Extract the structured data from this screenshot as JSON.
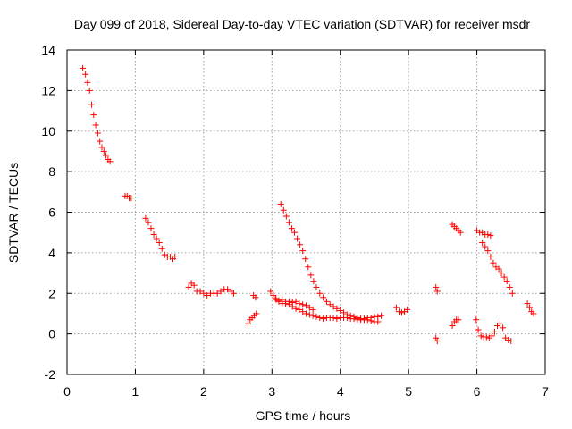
{
  "chart_data": {
    "type": "scatter",
    "title": "Day 099 of 2018, Sidereal Day-to-day VTEC variation (SDTVAR) for receiver msdr",
    "xlabel": "GPS time / hours",
    "ylabel": "SDTVAR / TECUs",
    "xlim": [
      0,
      7
    ],
    "ylim": [
      -2,
      14
    ],
    "xticks": [
      0,
      1,
      2,
      3,
      4,
      5,
      6,
      7
    ],
    "yticks": [
      -2,
      0,
      2,
      4,
      6,
      8,
      10,
      12,
      14
    ],
    "xtick_labels": [
      "0",
      "1",
      "2",
      "3",
      "4",
      "5",
      "6",
      "7"
    ],
    "ytick_labels": [
      "-2",
      "0",
      "2",
      "4",
      "6",
      "8",
      "10",
      "12",
      "14"
    ],
    "grid": true,
    "marker": "+",
    "marker_color": "#ff0000",
    "segments": [
      {
        "name": "seg1",
        "x": [
          0.23,
          0.27,
          0.3,
          0.33,
          0.36,
          0.39,
          0.42,
          0.45,
          0.48,
          0.51,
          0.54,
          0.57,
          0.6,
          0.63
        ],
        "y": [
          13.1,
          12.8,
          12.4,
          12.0,
          11.3,
          10.8,
          10.3,
          9.9,
          9.5,
          9.2,
          9.0,
          8.8,
          8.6,
          8.5
        ]
      },
      {
        "name": "seg2",
        "x": [
          0.85,
          0.88,
          0.91,
          0.94
        ],
        "y": [
          6.8,
          6.8,
          6.7,
          6.7
        ]
      },
      {
        "name": "seg3",
        "x": [
          1.15,
          1.19,
          1.23,
          1.27,
          1.31,
          1.35,
          1.39,
          1.43,
          1.47,
          1.51,
          1.55,
          1.58
        ],
        "y": [
          5.7,
          5.5,
          5.2,
          4.9,
          4.7,
          4.5,
          4.2,
          3.9,
          3.8,
          3.8,
          3.7,
          3.8
        ]
      },
      {
        "name": "seg4",
        "x": [
          1.78,
          1.82,
          1.86,
          1.9,
          1.95,
          2.0,
          2.05,
          2.1,
          2.15,
          2.2,
          2.25,
          2.3,
          2.35,
          2.4,
          2.44
        ],
        "y": [
          2.3,
          2.5,
          2.4,
          2.1,
          2.1,
          2.0,
          1.9,
          2.0,
          2.0,
          2.0,
          2.1,
          2.2,
          2.2,
          2.1,
          2.0
        ]
      },
      {
        "name": "seg5",
        "x": [
          2.65,
          2.68,
          2.71,
          2.74,
          2.77
        ],
        "y": [
          0.5,
          0.7,
          0.8,
          0.9,
          1.0
        ]
      },
      {
        "name": "seg6",
        "x": [
          2.73,
          2.76
        ],
        "y": [
          1.9,
          1.8
        ]
      },
      {
        "name": "seg7",
        "x": [
          3.13,
          3.17,
          3.21,
          3.25,
          3.29,
          3.33,
          3.37,
          3.41,
          3.45,
          3.49,
          3.53,
          3.57,
          3.61,
          3.65,
          3.7,
          3.75,
          3.8,
          3.85,
          3.9,
          3.95,
          4.0,
          4.05,
          4.1,
          4.15,
          4.2,
          4.25,
          4.3,
          4.35,
          4.4,
          4.45,
          4.5,
          4.55
        ],
        "y": [
          6.4,
          6.1,
          5.8,
          5.5,
          5.2,
          5.0,
          4.7,
          4.4,
          4.1,
          3.7,
          3.3,
          2.9,
          2.6,
          2.3,
          2.0,
          1.8,
          1.6,
          1.45,
          1.35,
          1.25,
          1.15,
          1.05,
          0.95,
          0.9,
          0.85,
          0.8,
          0.75,
          0.7,
          0.7,
          0.65,
          0.6,
          0.6
        ]
      },
      {
        "name": "seg8",
        "x": [
          2.98,
          3.02,
          3.06,
          3.1,
          3.15,
          3.2,
          3.25,
          3.3,
          3.35,
          3.4,
          3.45,
          3.5,
          3.55,
          3.6,
          3.65,
          3.7,
          3.75,
          3.8,
          3.85,
          3.9,
          3.95,
          4.0,
          4.05,
          4.1,
          4.15,
          4.2,
          4.25,
          4.3,
          4.35,
          4.4,
          4.45,
          4.5,
          4.55,
          4.6
        ],
        "y": [
          2.1,
          1.9,
          1.7,
          1.6,
          1.5,
          1.5,
          1.45,
          1.35,
          1.25,
          1.2,
          1.1,
          1.0,
          0.95,
          0.9,
          0.85,
          0.8,
          0.75,
          0.8,
          0.8,
          0.8,
          0.75,
          0.8,
          0.8,
          0.8,
          0.75,
          0.75,
          0.7,
          0.7,
          0.75,
          0.8,
          0.8,
          0.85,
          0.85,
          0.9
        ]
      },
      {
        "name": "seg9",
        "x": [
          3.05,
          3.1,
          3.15,
          3.2,
          3.25,
          3.3,
          3.35,
          3.4,
          3.45,
          3.5,
          3.55,
          3.6
        ],
        "y": [
          1.75,
          1.65,
          1.7,
          1.6,
          1.6,
          1.55,
          1.6,
          1.5,
          1.45,
          1.4,
          1.3,
          1.2
        ]
      },
      {
        "name": "seg10",
        "x": [
          4.82,
          4.86,
          4.9,
          4.94,
          4.98
        ],
        "y": [
          1.3,
          1.1,
          1.05,
          1.1,
          1.2
        ]
      },
      {
        "name": "seg11",
        "x": [
          5.4,
          5.42
        ],
        "y": [
          2.3,
          2.1
        ]
      },
      {
        "name": "seg12",
        "x": [
          5.4,
          5.42
        ],
        "y": [
          -0.2,
          -0.35
        ]
      },
      {
        "name": "seg13",
        "x": [
          5.64,
          5.67,
          5.7,
          5.73,
          5.76
        ],
        "y": [
          5.4,
          5.3,
          5.2,
          5.1,
          5.0
        ]
      },
      {
        "name": "seg14",
        "x": [
          5.64,
          5.67,
          5.7,
          5.73
        ],
        "y": [
          0.4,
          0.6,
          0.7,
          0.7
        ]
      },
      {
        "name": "seg15",
        "x": [
          6.0,
          6.04,
          6.08,
          6.12,
          6.16,
          6.2
        ],
        "y": [
          5.1,
          5.0,
          5.0,
          4.9,
          4.9,
          4.85
        ]
      },
      {
        "name": "seg16",
        "x": [
          6.08,
          6.12,
          6.16,
          6.2,
          6.24,
          6.28,
          6.32,
          6.36,
          6.4,
          6.44,
          6.48,
          6.52
        ],
        "y": [
          4.5,
          4.3,
          4.1,
          3.8,
          3.5,
          3.3,
          3.2,
          3.0,
          2.8,
          2.6,
          2.3,
          2.0
        ]
      },
      {
        "name": "seg17",
        "x": [
          5.99,
          6.02,
          6.06,
          6.1,
          6.14,
          6.18,
          6.22,
          6.26,
          6.3,
          6.34,
          6.38,
          6.42,
          6.46,
          6.5
        ],
        "y": [
          0.7,
          0.2,
          -0.1,
          -0.15,
          -0.15,
          -0.2,
          -0.1,
          0.1,
          0.4,
          0.5,
          0.3,
          -0.2,
          -0.3,
          -0.35
        ]
      },
      {
        "name": "seg18",
        "x": [
          6.74,
          6.77,
          6.8,
          6.83
        ],
        "y": [
          1.5,
          1.3,
          1.1,
          1.0
        ]
      }
    ]
  }
}
